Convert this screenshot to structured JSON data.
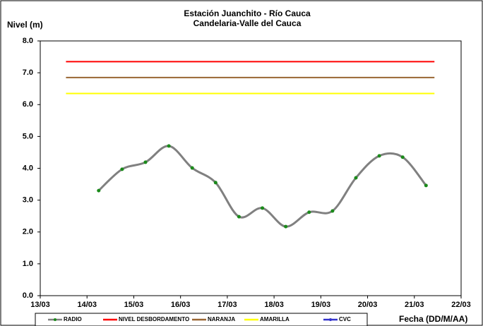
{
  "chart_data": {
    "type": "line",
    "title": "Estación Juanchito - Río Cauca",
    "subtitle": "Candelaria-Valle del Cauca",
    "y_label": "Nivel (m)",
    "x_label": "Fecha (DD/M/AA)",
    "xlim": [
      13,
      22
    ],
    "xticks": [
      {
        "value": 13,
        "label": "13/03"
      },
      {
        "value": 14,
        "label": "14/03"
      },
      {
        "value": 15,
        "label": "15/03"
      },
      {
        "value": 16,
        "label": "16/03"
      },
      {
        "value": 17,
        "label": "17/03"
      },
      {
        "value": 18,
        "label": "18/03"
      },
      {
        "value": 19,
        "label": "19/03"
      },
      {
        "value": 20,
        "label": "20/03"
      },
      {
        "value": 21,
        "label": "21/03"
      },
      {
        "value": 22,
        "label": "22/03"
      }
    ],
    "ylim": [
      0,
      8
    ],
    "yticks": [
      {
        "value": 0,
        "label": "0.0"
      },
      {
        "value": 1,
        "label": "1.0"
      },
      {
        "value": 2,
        "label": "2.0"
      },
      {
        "value": 3,
        "label": "3.0"
      },
      {
        "value": 4,
        "label": "4.0"
      },
      {
        "value": 5,
        "label": "5.0"
      },
      {
        "value": 6,
        "label": "6.0"
      },
      {
        "value": 7,
        "label": "7.0"
      },
      {
        "value": 8,
        "label": "8.0"
      }
    ],
    "grid": false,
    "legend": "bottom",
    "series": [
      {
        "name": "RADIO",
        "color": "#808080",
        "marker_color": "#1a8a1a",
        "smooth": true,
        "x": [
          14.25,
          14.75,
          15.25,
          15.75,
          16.25,
          16.75,
          17.25,
          17.75,
          18.25,
          18.75,
          19.25,
          19.75,
          20.25,
          20.75,
          21.25
        ],
        "values": [
          3.3,
          3.97,
          4.19,
          4.7,
          4.01,
          3.55,
          2.48,
          2.75,
          2.17,
          2.62,
          2.66,
          3.7,
          4.39,
          4.35,
          3.46
        ]
      },
      {
        "name": "NIVEL DESBORDAMENTO",
        "color": "#ff0000",
        "x": [
          13.55,
          21.43
        ],
        "values": [
          7.35,
          7.35
        ]
      },
      {
        "name": "NARANJA",
        "color": "#996633",
        "x": [
          13.55,
          21.43
        ],
        "values": [
          6.85,
          6.85
        ]
      },
      {
        "name": "AMARILLA",
        "color": "#ffff00",
        "x": [
          13.55,
          21.43
        ],
        "values": [
          6.35,
          6.35
        ]
      },
      {
        "name": "CVC",
        "color": "#3333cc",
        "x": [],
        "values": []
      }
    ]
  }
}
